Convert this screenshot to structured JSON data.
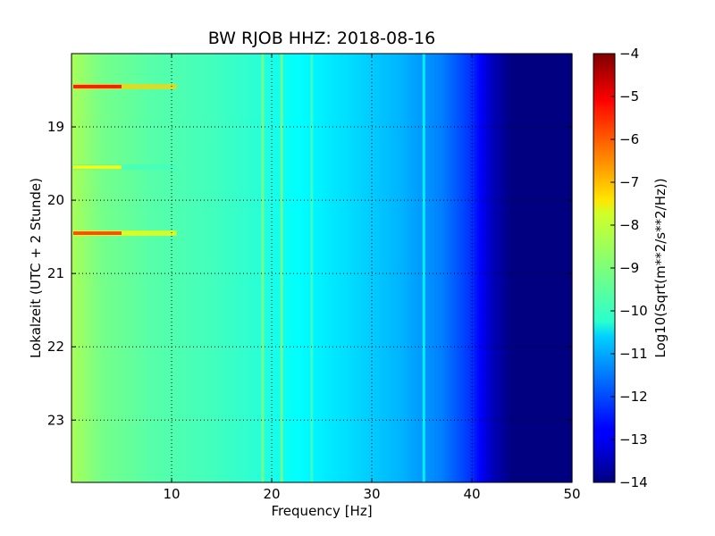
{
  "chart_data": {
    "type": "heatmap",
    "title": "BW RJOB HHZ: 2018-08-16",
    "xlabel": "Frequency [Hz]",
    "ylabel": "Lokalzeit (UTC + 2 Stunde)",
    "colorbar_label": "Log10(Sqrt(m**2/s**2/Hz))",
    "colormap": "jet",
    "xlim": [
      0,
      50
    ],
    "ylim_hours": [
      18.0,
      23.85
    ],
    "y_inverted": true,
    "clim": [
      -14,
      -4
    ],
    "grid": true,
    "x_ticks": [
      {
        "value": 10,
        "label": "10"
      },
      {
        "value": 20,
        "label": "20"
      },
      {
        "value": 30,
        "label": "30"
      },
      {
        "value": 40,
        "label": "40"
      },
      {
        "value": 50,
        "label": "50"
      }
    ],
    "y_ticks": [
      {
        "value": 19,
        "label": "19"
      },
      {
        "value": 20,
        "label": "20"
      },
      {
        "value": 21,
        "label": "21"
      },
      {
        "value": 22,
        "label": "22"
      },
      {
        "value": 23,
        "label": "23"
      }
    ],
    "colorbar_ticks": [
      {
        "value": -4,
        "label": "−4"
      },
      {
        "value": -5,
        "label": "−5"
      },
      {
        "value": -6,
        "label": "−6"
      },
      {
        "value": -7,
        "label": "−7"
      },
      {
        "value": -8,
        "label": "−8"
      },
      {
        "value": -9,
        "label": "−9"
      },
      {
        "value": -10,
        "label": "−10"
      },
      {
        "value": -11,
        "label": "−11"
      },
      {
        "value": -12,
        "label": "−12"
      },
      {
        "value": -13,
        "label": "−13"
      },
      {
        "value": -14,
        "label": "−14"
      }
    ],
    "base_spectrum": [
      {
        "freq": 0,
        "value": -8.6
      },
      {
        "freq": 3,
        "value": -9.1
      },
      {
        "freq": 8,
        "value": -9.4
      },
      {
        "freq": 14,
        "value": -9.6
      },
      {
        "freq": 18,
        "value": -9.8
      },
      {
        "freq": 22,
        "value": -10.2
      },
      {
        "freq": 28,
        "value": -10.6
      },
      {
        "freq": 33,
        "value": -11.0
      },
      {
        "freq": 37,
        "value": -11.5
      },
      {
        "freq": 40,
        "value": -12.3
      },
      {
        "freq": 42,
        "value": -13.4
      },
      {
        "freq": 44,
        "value": -14.0
      },
      {
        "freq": 50,
        "value": -14.0
      }
    ],
    "spectral_lines": [
      {
        "freq": 19.1,
        "value": -9.0
      },
      {
        "freq": 21.0,
        "value": -9.0
      },
      {
        "freq": 24.0,
        "value": -9.6
      },
      {
        "freq": 35.2,
        "value": -10.2
      }
    ],
    "events": [
      {
        "time_hours": 18.45,
        "value": -5.5
      },
      {
        "time_hours": 19.55,
        "value": -7.8
      },
      {
        "time_hours": 20.45,
        "value": -6.0
      }
    ]
  }
}
